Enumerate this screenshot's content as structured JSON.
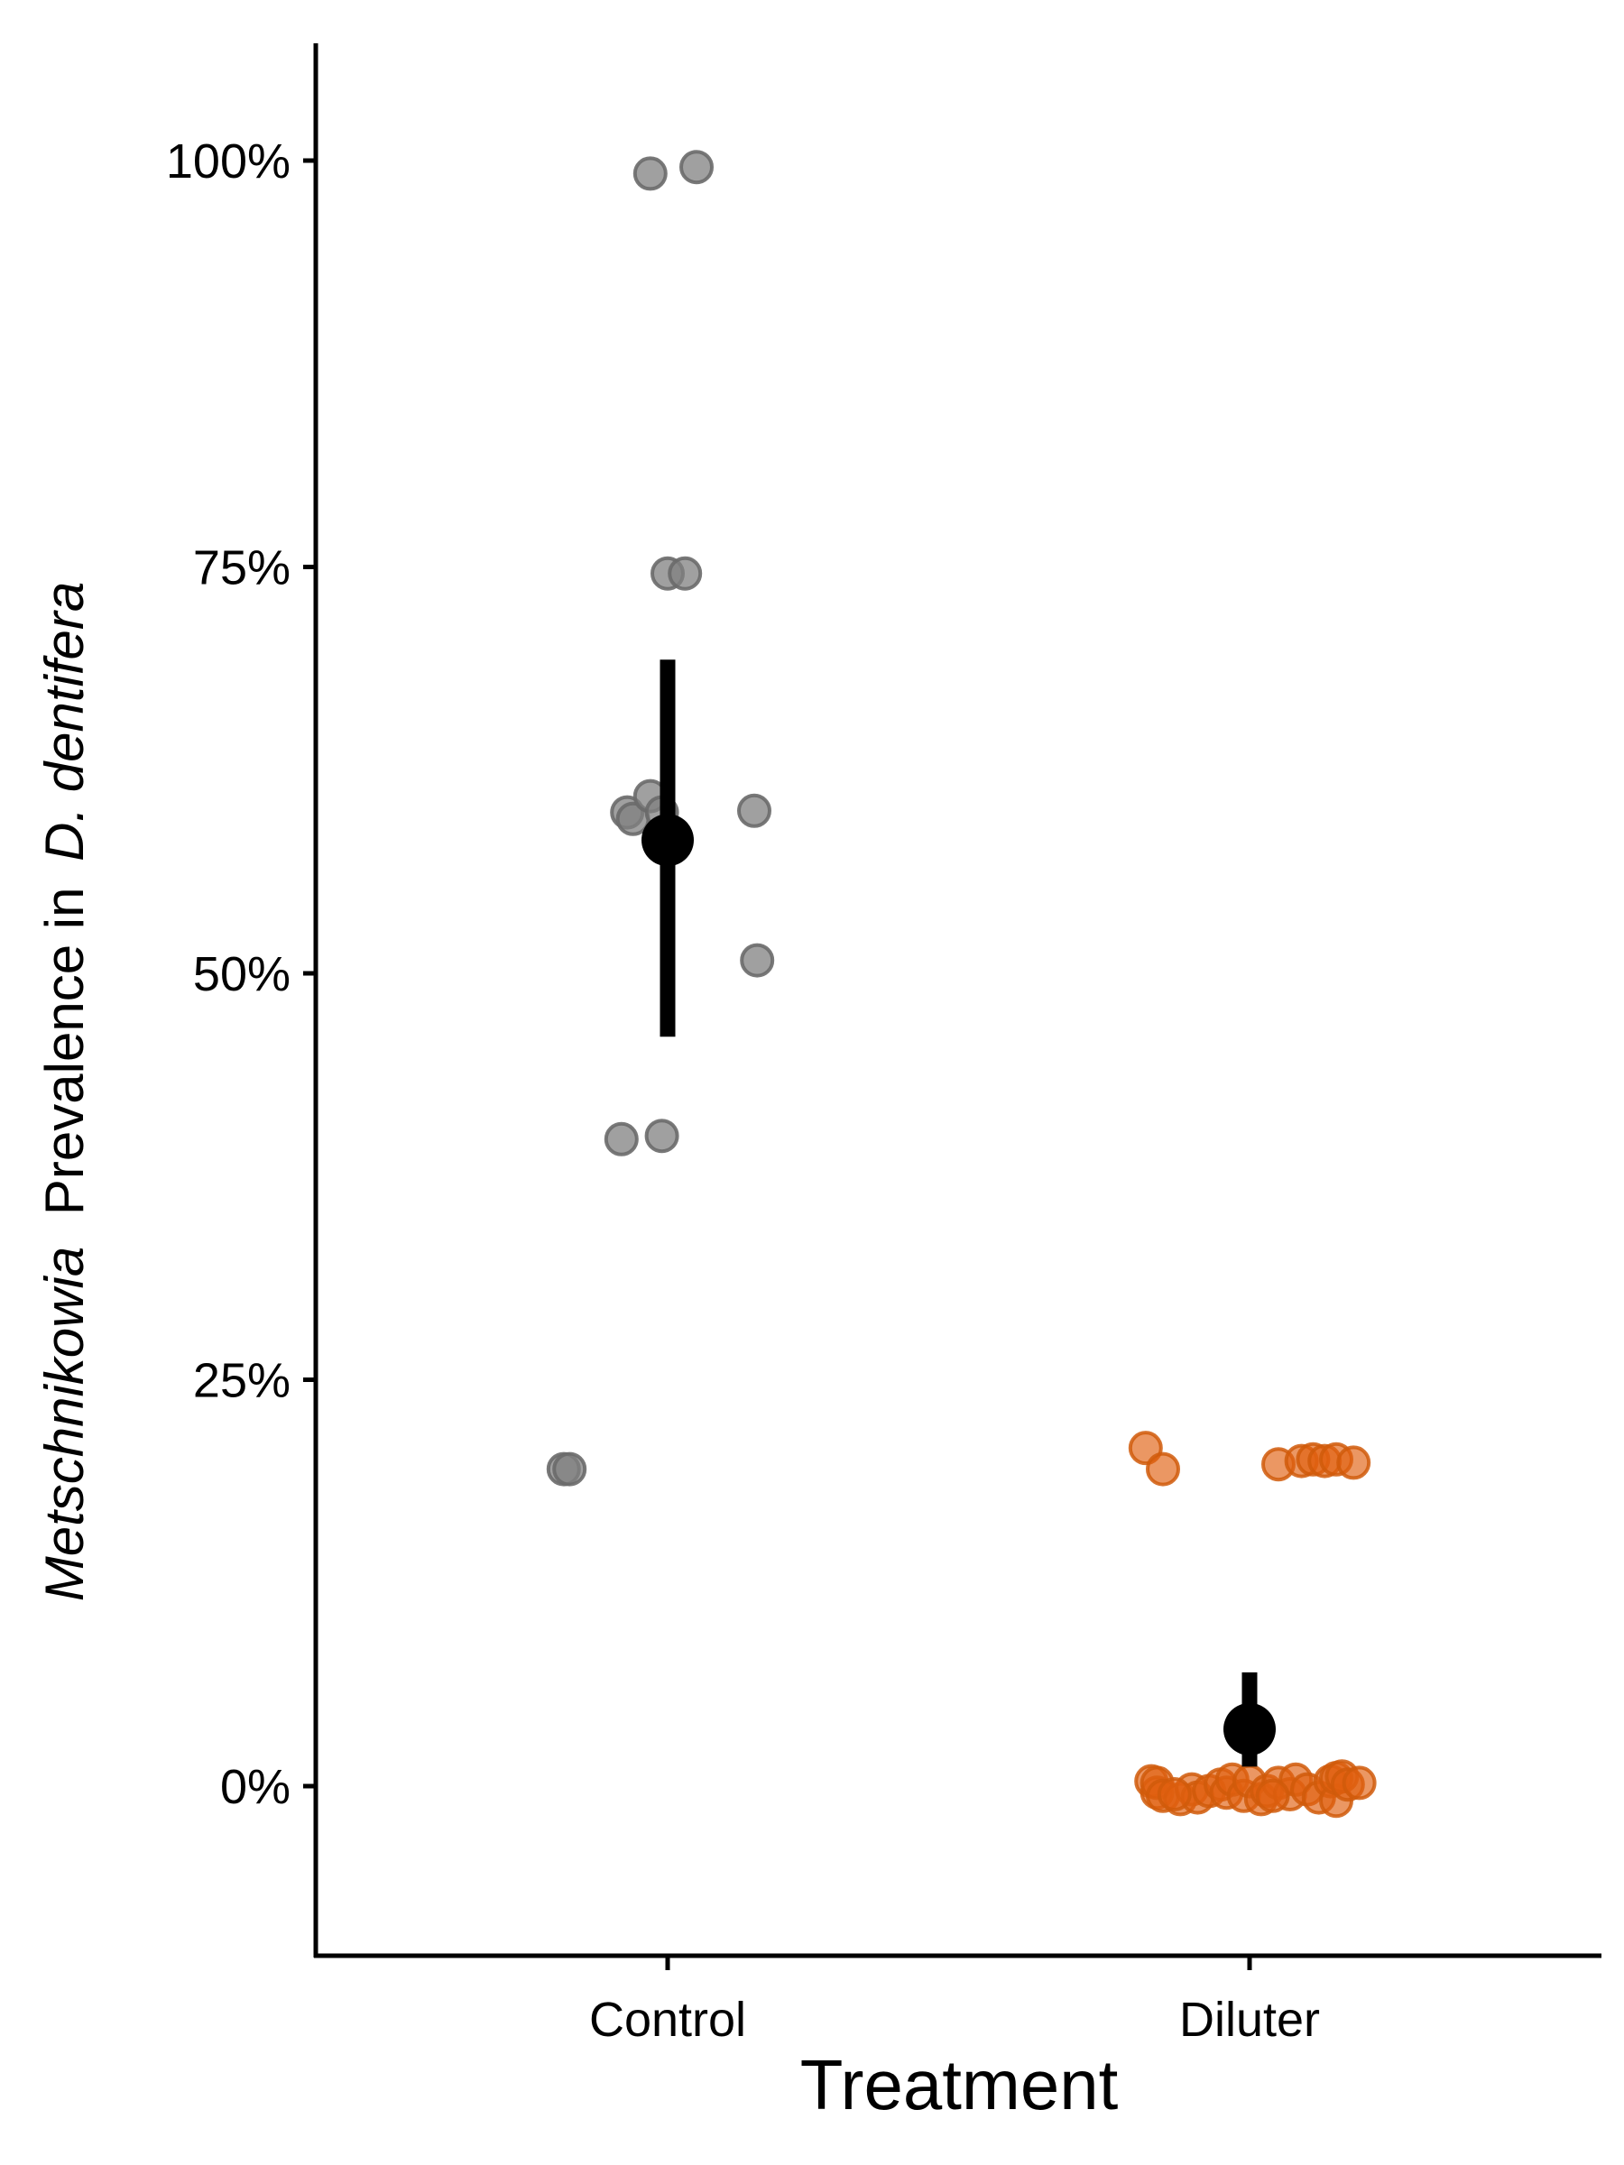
{
  "chart_data": {
    "type": "scatter",
    "xlabel": "Treatment",
    "ylabel_italic_1": "Metschnikowia",
    "ylabel_plain": "Prevalence in",
    "ylabel_italic_2": "D. dentifera",
    "ylim": [
      -0.1,
      1.07
    ],
    "yticks": [
      {
        "value": 0,
        "label": "0%"
      },
      {
        "value": 0.25,
        "label": "25%"
      },
      {
        "value": 0.5,
        "label": "50%"
      },
      {
        "value": 0.75,
        "label": "75%"
      },
      {
        "value": 1.0,
        "label": "100%"
      }
    ],
    "categories": [
      "Control",
      "Diluter"
    ],
    "colors": {
      "Control": "#808080",
      "Diluter": "#e06010",
      "summary": "#000000"
    },
    "series": [
      {
        "category": "Control",
        "points": [
          {
            "x": -0.03,
            "y": 0.992
          },
          {
            "x": 0.05,
            "y": 0.996
          },
          {
            "x": 0.0,
            "y": 0.746
          },
          {
            "x": 0.03,
            "y": 0.746
          },
          {
            "x": -0.07,
            "y": 0.599
          },
          {
            "x": -0.06,
            "y": 0.595
          },
          {
            "x": -0.03,
            "y": 0.609
          },
          {
            "x": -0.01,
            "y": 0.599
          },
          {
            "x": 0.15,
            "y": 0.6
          },
          {
            "x": 0.155,
            "y": 0.508
          },
          {
            "x": -0.08,
            "y": 0.398
          },
          {
            "x": -0.01,
            "y": 0.4
          },
          {
            "x": -0.18,
            "y": 0.195
          },
          {
            "x": -0.17,
            "y": 0.195
          }
        ]
      },
      {
        "category": "Diluter",
        "points": [
          {
            "x": -0.18,
            "y": 0.208
          },
          {
            "x": -0.15,
            "y": 0.195
          },
          {
            "x": 0.05,
            "y": 0.198
          },
          {
            "x": 0.09,
            "y": 0.2
          },
          {
            "x": 0.11,
            "y": 0.201
          },
          {
            "x": 0.13,
            "y": 0.2
          },
          {
            "x": 0.15,
            "y": 0.201
          },
          {
            "x": 0.18,
            "y": 0.199
          },
          {
            "x": -0.17,
            "y": 0.003
          },
          {
            "x": -0.16,
            "y": -0.004
          },
          {
            "x": -0.16,
            "y": 0.002
          },
          {
            "x": -0.15,
            "y": -0.006
          },
          {
            "x": -0.12,
            "y": -0.008
          },
          {
            "x": -0.1,
            "y": -0.002
          },
          {
            "x": -0.09,
            "y": -0.007
          },
          {
            "x": -0.07,
            "y": -0.003
          },
          {
            "x": -0.05,
            "y": 0.001
          },
          {
            "x": -0.04,
            "y": -0.004
          },
          {
            "x": -0.03,
            "y": 0.004
          },
          {
            "x": -0.01,
            "y": -0.006
          },
          {
            "x": 0.0,
            "y": 0.003
          },
          {
            "x": 0.02,
            "y": -0.008
          },
          {
            "x": 0.03,
            "y": -0.003
          },
          {
            "x": 0.05,
            "y": 0.002
          },
          {
            "x": 0.07,
            "y": -0.005
          },
          {
            "x": 0.08,
            "y": 0.004
          },
          {
            "x": 0.1,
            "y": -0.002
          },
          {
            "x": 0.12,
            "y": -0.007
          },
          {
            "x": 0.14,
            "y": 0.003
          },
          {
            "x": 0.15,
            "y": -0.009
          },
          {
            "x": 0.15,
            "y": 0.005
          },
          {
            "x": 0.16,
            "y": 0.006
          },
          {
            "x": 0.17,
            "y": 0.001
          },
          {
            "x": 0.19,
            "y": 0.002
          },
          {
            "x": -0.13,
            "y": -0.005
          },
          {
            "x": 0.04,
            "y": -0.006
          }
        ]
      }
    ],
    "summary": [
      {
        "category": "Control",
        "mean": 0.582,
        "lower": 0.461,
        "upper": 0.693
      },
      {
        "category": "Diluter",
        "mean": 0.035,
        "lower": 0.012,
        "upper": 0.07
      }
    ]
  }
}
